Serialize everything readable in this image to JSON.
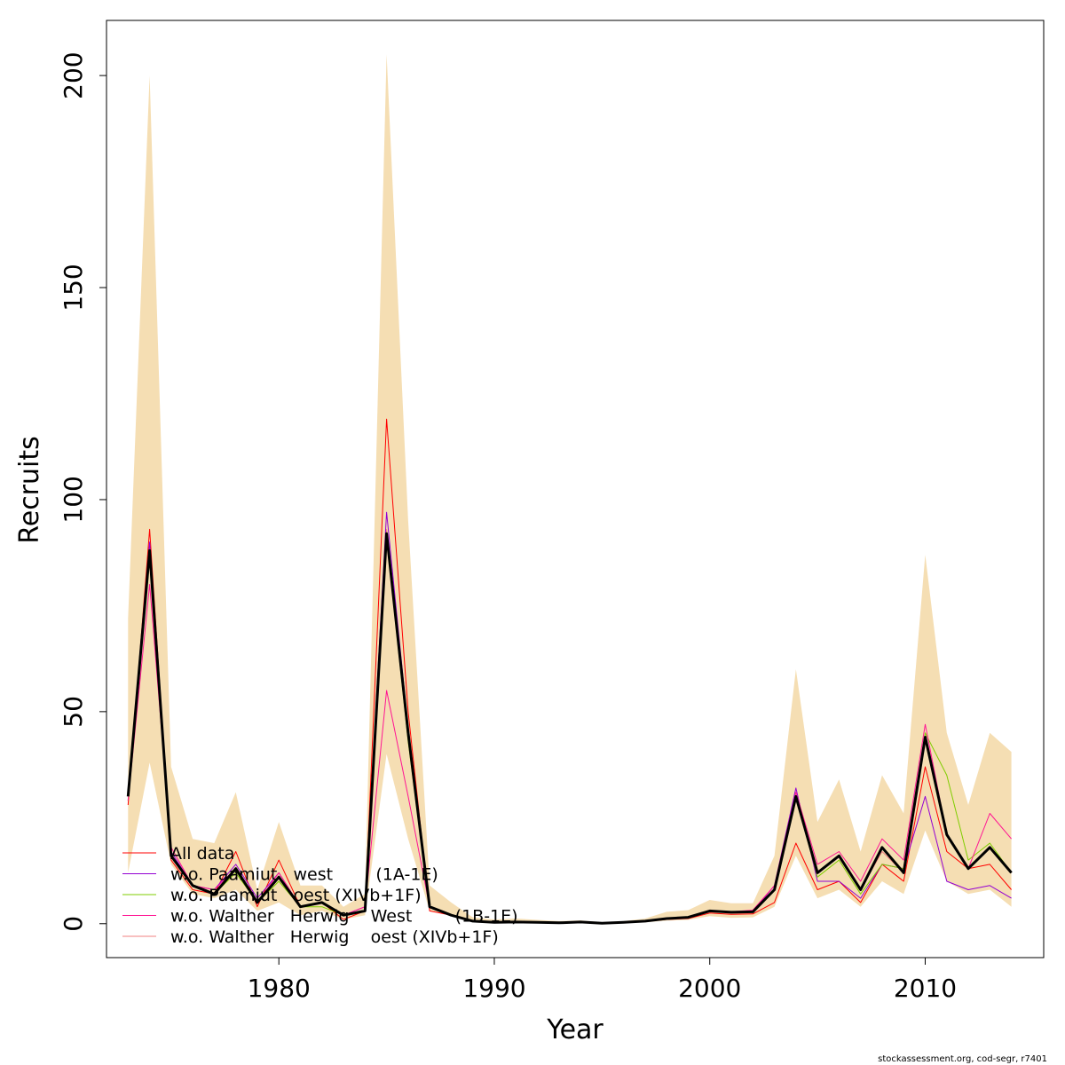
{
  "chart_data": {
    "type": "line",
    "title": "",
    "xlabel": "Year",
    "ylabel": "Recruits",
    "xlim": [
      1972,
      2015.5
    ],
    "ylim": [
      -8,
      213
    ],
    "xticks": [
      1980,
      1990,
      2000,
      2010
    ],
    "yticks": [
      0,
      50,
      100,
      150,
      200
    ],
    "grid": false,
    "legend_position": "bottom-left",
    "x": [
      1973,
      1974,
      1975,
      1976,
      1977,
      1978,
      1979,
      1980,
      1981,
      1982,
      1983,
      1984,
      1985,
      1986,
      1987,
      1988,
      1989,
      1990,
      1991,
      1992,
      1993,
      1994,
      1995,
      1996,
      1997,
      1998,
      1999,
      2000,
      2001,
      2002,
      2003,
      2004,
      2005,
      2006,
      2007,
      2008,
      2009,
      2010,
      2011,
      2012,
      2013,
      2014
    ],
    "band": {
      "color": "#F5DEB3",
      "lower": [
        12,
        38,
        14,
        7,
        6,
        8,
        3,
        5,
        2,
        3,
        1,
        2,
        40,
        20,
        3,
        2,
        0.5,
        0.2,
        0.2,
        0.1,
        0.1,
        0.1,
        0,
        0.1,
        0.3,
        0.7,
        0.9,
        1.8,
        1.4,
        1.5,
        4,
        16,
        6,
        8,
        4,
        10,
        7,
        22,
        10,
        7,
        8,
        4
      ],
      "upper": [
        72,
        200,
        37,
        20,
        19,
        31,
        8,
        24,
        9,
        9,
        4,
        7,
        205,
        95,
        9,
        5,
        1.5,
        1,
        1.2,
        0.9,
        0.6,
        0.8,
        0.3,
        0.6,
        1.2,
        2.8,
        3.2,
        5.6,
        4.8,
        4.8,
        16,
        60,
        24,
        34,
        17,
        35,
        26,
        87,
        45,
        28,
        45,
        40.5
      ]
    },
    "series": [
      {
        "name": "All data",
        "color": "#FF0000",
        "width": 1,
        "values": [
          28,
          93,
          15,
          8,
          7,
          17,
          4,
          15,
          4,
          5,
          1,
          3,
          119,
          50,
          3,
          2,
          0.5,
          0.2,
          0.3,
          0.2,
          0.2,
          0.3,
          0,
          0.2,
          0.5,
          1,
          1.2,
          2.5,
          2.2,
          2.3,
          5,
          19,
          8,
          10,
          5,
          14,
          10,
          37,
          17,
          13,
          14,
          8
        ]
      },
      {
        "name": "w.o. Paamiut   west        (1A-1E)",
        "color": "#9400D3",
        "width": 1,
        "values": [
          31,
          90,
          17,
          9,
          8,
          14,
          6,
          12,
          4,
          5,
          2,
          4,
          97,
          46,
          4,
          2,
          0.7,
          0.3,
          0.4,
          0.3,
          0.2,
          0.4,
          0.1,
          0.3,
          0.6,
          1.2,
          1.5,
          3,
          2.7,
          2.8,
          9,
          32,
          10,
          10,
          6,
          14,
          13,
          30,
          10,
          8,
          9,
          6
        ]
      },
      {
        "name": "w.o. Paamiut   oest (XIVb+1F)",
        "color": "#7FCD00",
        "width": 1,
        "values": [
          29,
          86,
          16,
          9,
          7,
          12,
          5,
          10,
          4,
          4,
          2,
          3,
          91,
          43,
          4,
          2,
          0.6,
          0.3,
          0.4,
          0.3,
          0.2,
          0.4,
          0.1,
          0.3,
          0.6,
          1.2,
          1.5,
          3,
          2.6,
          2.8,
          8,
          30,
          11,
          15,
          7,
          14,
          13,
          45,
          35,
          15,
          19,
          12
        ]
      },
      {
        "name": "w.o. Walther   Herwig    West        (1B-1E)",
        "color": "#FF1493",
        "width": 1,
        "values": [
          29,
          80,
          18,
          9,
          8,
          13,
          5,
          12,
          4,
          5,
          2,
          4,
          55,
          30,
          4,
          2,
          0.7,
          0.3,
          0.4,
          0.3,
          0.2,
          0.4,
          0.1,
          0.3,
          0.6,
          1.2,
          1.5,
          3,
          2.8,
          3.2,
          9,
          31,
          14,
          17,
          10,
          20,
          15,
          47,
          21,
          13,
          26,
          20
        ]
      },
      {
        "name": "w.o. Walther   Herwig    oest (XIVb+1F)",
        "color": "#F08080",
        "width": 1,
        "values": [
          30,
          88,
          16,
          9,
          7,
          13,
          5,
          11,
          4,
          5,
          2,
          3,
          93,
          44,
          4,
          2,
          0.6,
          0.3,
          0.4,
          0.3,
          0.2,
          0.4,
          0.1,
          0.3,
          0.6,
          1.2,
          1.5,
          3,
          2.7,
          2.8,
          8,
          30,
          12,
          16,
          8,
          17,
          12,
          44,
          21,
          13,
          18,
          12
        ]
      },
      {
        "name": "",
        "color": "#000000",
        "width": 3,
        "values": [
          30,
          88,
          16,
          9,
          7,
          13,
          5,
          11,
          4,
          5,
          2,
          3,
          92,
          45,
          4,
          2,
          0.6,
          0.3,
          0.4,
          0.3,
          0.2,
          0.4,
          0.1,
          0.3,
          0.6,
          1.2,
          1.5,
          3,
          2.7,
          2.8,
          8,
          30,
          12,
          16,
          8,
          18,
          12,
          44,
          21,
          13,
          18,
          12
        ]
      }
    ]
  },
  "footer": {
    "source": "stockassessment.org, cod-segr, r7401"
  }
}
